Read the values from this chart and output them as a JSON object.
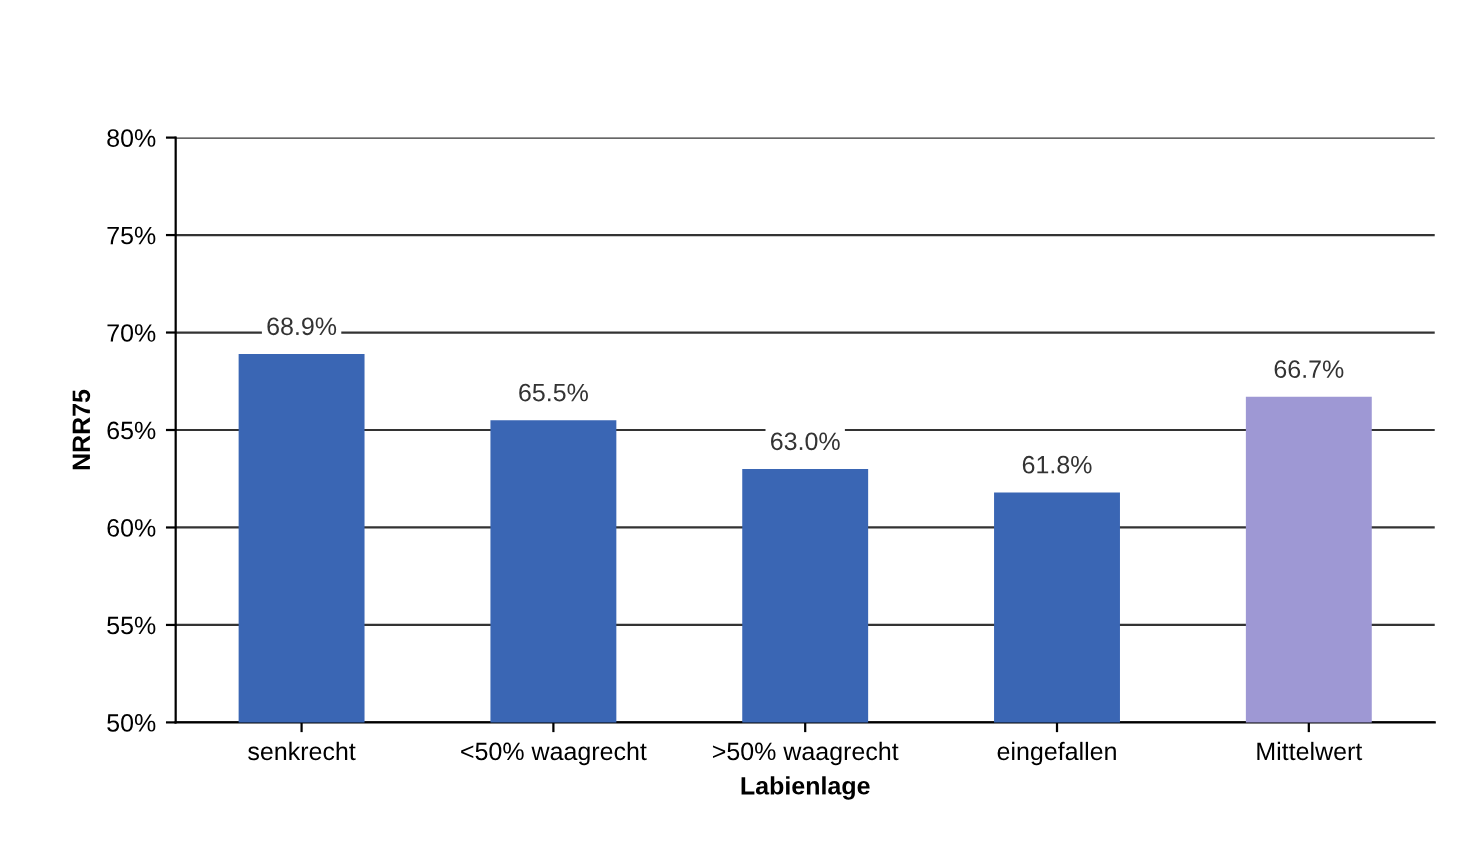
{
  "chart_data": {
    "type": "bar",
    "xlabel": "Labienlage",
    "ylabel": "NRR75",
    "categories": [
      "senkrecht",
      "<50% waagrecht",
      ">50% waagrecht",
      "eingefallen",
      "Mittelwert"
    ],
    "values": [
      68.9,
      65.5,
      63.0,
      61.8,
      66.7
    ],
    "colors": [
      "#3a66b4",
      "#3a66b4",
      "#3a66b4",
      "#3a66b4",
      "#9e98d4"
    ],
    "value_labels": [
      "68.9%",
      "65.5%",
      "63.0%",
      "61.8%",
      "66.7%"
    ],
    "ylim": [
      50,
      80
    ],
    "yticks": [
      {
        "value": 50,
        "label": "50%"
      },
      {
        "value": 55,
        "label": "55%"
      },
      {
        "value": 60,
        "label": "60%"
      },
      {
        "value": 65,
        "label": "65%"
      },
      {
        "value": 70,
        "label": "70%"
      },
      {
        "value": 75,
        "label": "75%"
      },
      {
        "value": 80,
        "label": "80%"
      }
    ],
    "grid": "y",
    "legend": false
  }
}
